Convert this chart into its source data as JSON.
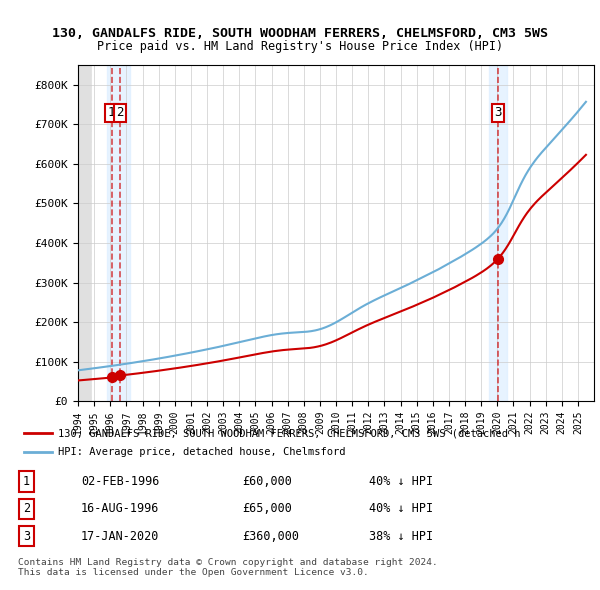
{
  "title1": "130, GANDALFS RIDE, SOUTH WOODHAM FERRERS, CHELMSFORD, CM3 5WS",
  "title2": "Price paid vs. HM Land Registry's House Price Index (HPI)",
  "hpi_color": "#6baed6",
  "price_color": "#cc0000",
  "background_hatch": "#e8e8e8",
  "legend_label_price": "130, GANDALFS RIDE, SOUTH WOODHAM FERRERS, CHELMSFORD, CM3 5WS (detached h",
  "legend_label_hpi": "HPI: Average price, detached house, Chelmsford",
  "transactions": [
    {
      "label": "1",
      "date": "02-FEB-1996",
      "price": 60000,
      "note": "40% ↓ HPI",
      "x": 1996.09
    },
    {
      "label": "2",
      "date": "16-AUG-1996",
      "price": 65000,
      "note": "40% ↓ HPI",
      "x": 1996.62
    },
    {
      "label": "3",
      "date": "17-JAN-2020",
      "price": 360000,
      "note": "38% ↓ HPI",
      "x": 2020.04
    }
  ],
  "footer1": "Contains HM Land Registry data © Crown copyright and database right 2024.",
  "footer2": "This data is licensed under the Open Government Licence v3.0.",
  "ylim": [
    0,
    850000
  ],
  "xlim": [
    1994,
    2026
  ]
}
